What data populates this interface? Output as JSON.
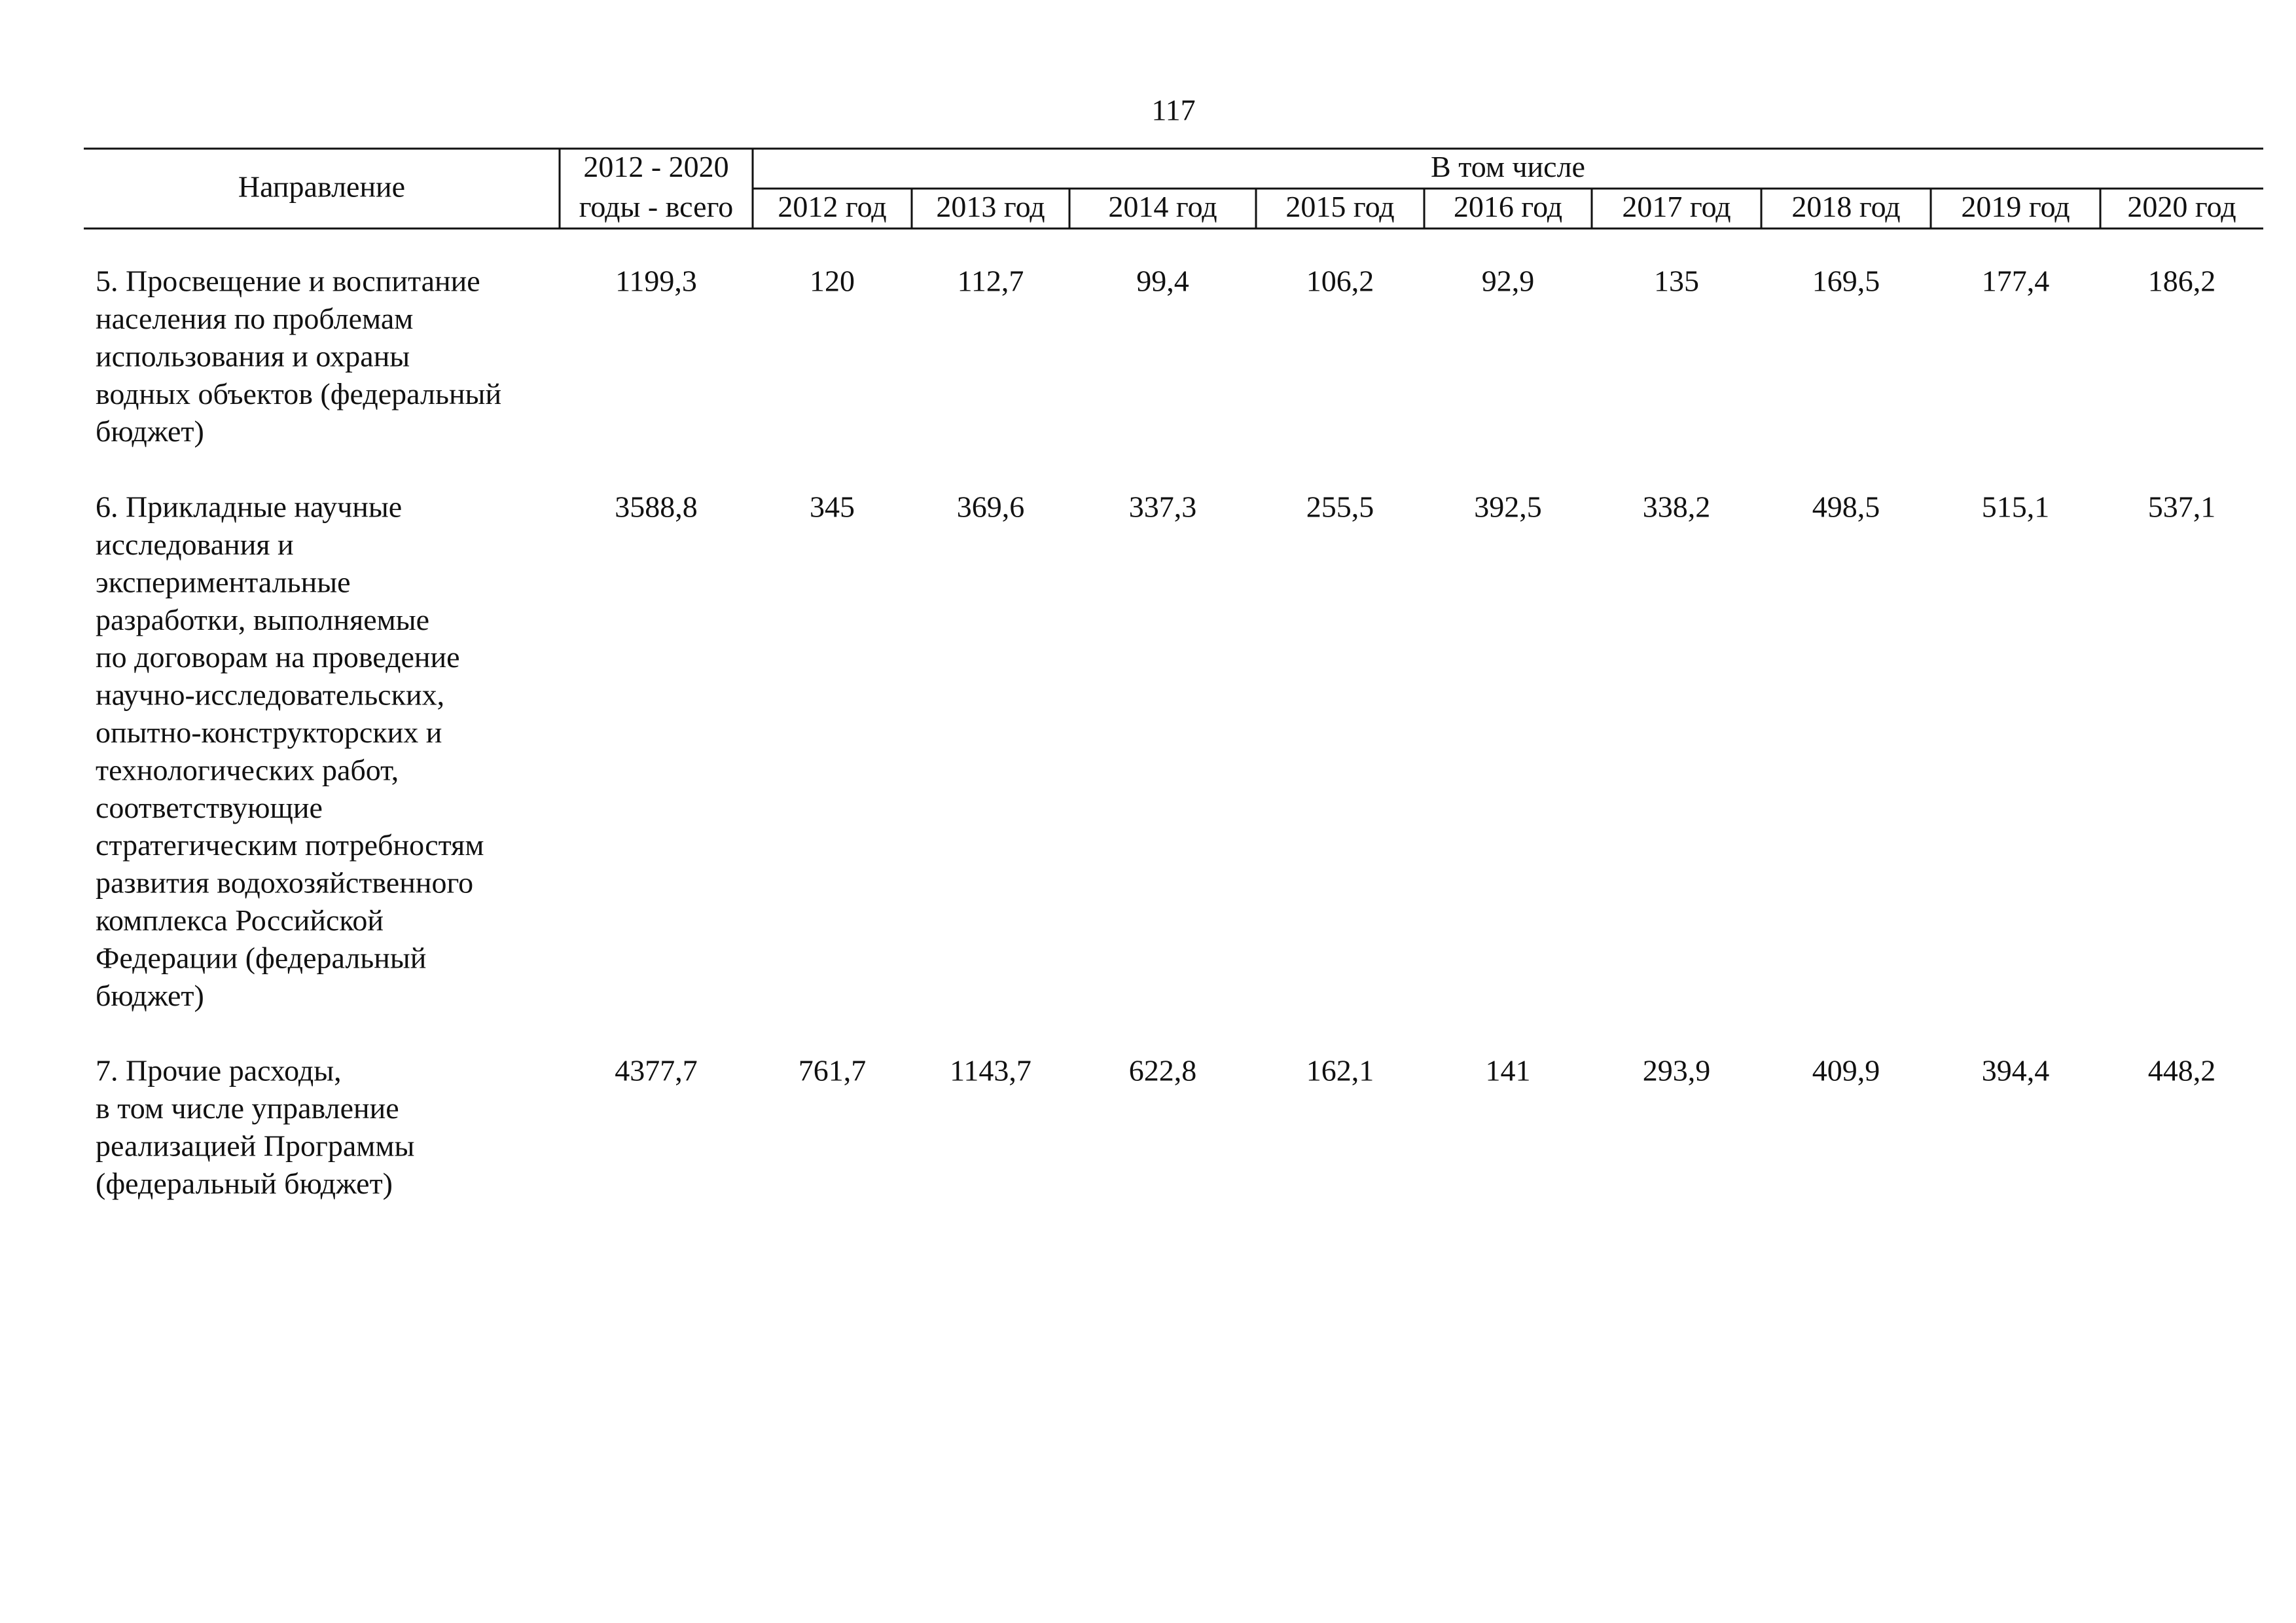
{
  "page_number": "117",
  "table": {
    "header": {
      "direction": "Направление",
      "total": [
        "2012 - 2020",
        "годы - всего"
      ],
      "subheader": "В том числе",
      "years": [
        "2012 год",
        "2013 год",
        "2014 год",
        "2015 год",
        "2016 год",
        "2017 год",
        "2018 год",
        "2019 год",
        "2020 год"
      ]
    },
    "rows": [
      {
        "direction": [
          "5. Просвещение и воспитание",
          "населения по проблемам",
          "использования и охраны",
          "водных объектов (федеральный",
          "бюджет)"
        ],
        "total": "1199,3",
        "years": [
          "120",
          "112,7",
          "99,4",
          "106,2",
          "92,9",
          "135",
          "169,5",
          "177,4",
          "186,2"
        ]
      },
      {
        "direction": [
          "6. Прикладные научные",
          "исследования и",
          "экспериментальные",
          "разработки, выполняемые",
          "по договорам на проведение",
          "научно-исследовательских,",
          "опытно-конструкторских и",
          "технологических работ,",
          "соответствующие",
          "стратегическим потребностям",
          "развития водохозяйственного",
          "комплекса Российской",
          "Федерации (федеральный",
          "бюджет)"
        ],
        "total": "3588,8",
        "years": [
          "345",
          "369,6",
          "337,3",
          "255,5",
          "392,5",
          "338,2",
          "498,5",
          "515,1",
          "537,1"
        ]
      },
      {
        "direction": [
          "7. Прочие расходы,",
          "в том числе управление",
          "реализацией Программы",
          "(федеральный бюджет)"
        ],
        "total": "4377,7",
        "years": [
          "761,7",
          "1143,7",
          "622,8",
          "162,1",
          "141",
          "293,9",
          "409,9",
          "394,4",
          "448,2"
        ]
      }
    ]
  }
}
